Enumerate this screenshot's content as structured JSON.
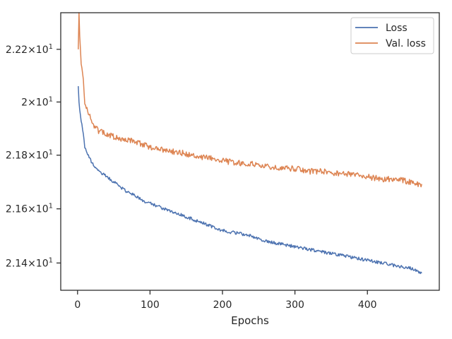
{
  "chart_data": {
    "type": "line",
    "title": "",
    "xlabel": "Epochs",
    "ylabel": "",
    "xlim": [
      -23.2,
      499.2
    ],
    "ylim": [
      21.3,
      22.34
    ],
    "yscale": "log",
    "x_ticks": [
      0,
      100,
      200,
      300,
      400
    ],
    "y_ticks": [
      {
        "value": 21.4,
        "mantissa": "2.14",
        "base": "10",
        "exp": "1"
      },
      {
        "value": 21.6,
        "mantissa": "2.16",
        "base": "10",
        "exp": "1"
      },
      {
        "value": 21.8,
        "mantissa": "2.18",
        "base": "10",
        "exp": "1"
      },
      {
        "value": 22.0,
        "mantissa": "2",
        "base": "10",
        "exp": "1"
      },
      {
        "value": 22.2,
        "mantissa": "2.22",
        "base": "10",
        "exp": "1"
      }
    ],
    "grid": false,
    "legend_position": "top-right",
    "series": [
      {
        "name": "Loss",
        "color": "#4c72b0",
        "x": [
          1,
          2,
          3,
          5,
          8,
          10,
          15,
          20,
          25,
          30,
          40,
          50,
          60,
          70,
          80,
          90,
          100,
          120,
          140,
          160,
          180,
          200,
          220,
          240,
          260,
          280,
          300,
          320,
          340,
          360,
          380,
          400,
          420,
          440,
          460,
          470,
          475
        ],
        "y": [
          22.06,
          22.0,
          21.97,
          21.93,
          21.88,
          21.83,
          21.8,
          21.77,
          21.75,
          21.74,
          21.72,
          21.7,
          21.68,
          21.66,
          21.65,
          21.63,
          21.62,
          21.6,
          21.58,
          21.56,
          21.54,
          21.52,
          21.51,
          21.5,
          21.48,
          21.47,
          21.46,
          21.45,
          21.44,
          21.43,
          21.42,
          21.41,
          21.4,
          21.39,
          21.38,
          21.37,
          21.36
        ]
      },
      {
        "name": "Val. loss",
        "color": "#dd8452",
        "x": [
          1,
          2,
          3,
          5,
          8,
          10,
          15,
          20,
          25,
          30,
          40,
          50,
          60,
          70,
          80,
          90,
          100,
          120,
          140,
          160,
          180,
          200,
          220,
          240,
          260,
          280,
          300,
          320,
          340,
          360,
          380,
          400,
          420,
          440,
          460,
          470,
          475
        ],
        "y": [
          22.2,
          22.34,
          22.25,
          22.15,
          22.08,
          22.0,
          21.96,
          21.93,
          21.9,
          21.89,
          21.88,
          21.87,
          21.86,
          21.86,
          21.85,
          21.84,
          21.83,
          21.82,
          21.81,
          21.8,
          21.79,
          21.78,
          21.77,
          21.77,
          21.76,
          21.75,
          21.75,
          21.74,
          21.74,
          21.73,
          21.73,
          21.72,
          21.71,
          21.71,
          21.7,
          21.69,
          21.69
        ]
      }
    ]
  }
}
